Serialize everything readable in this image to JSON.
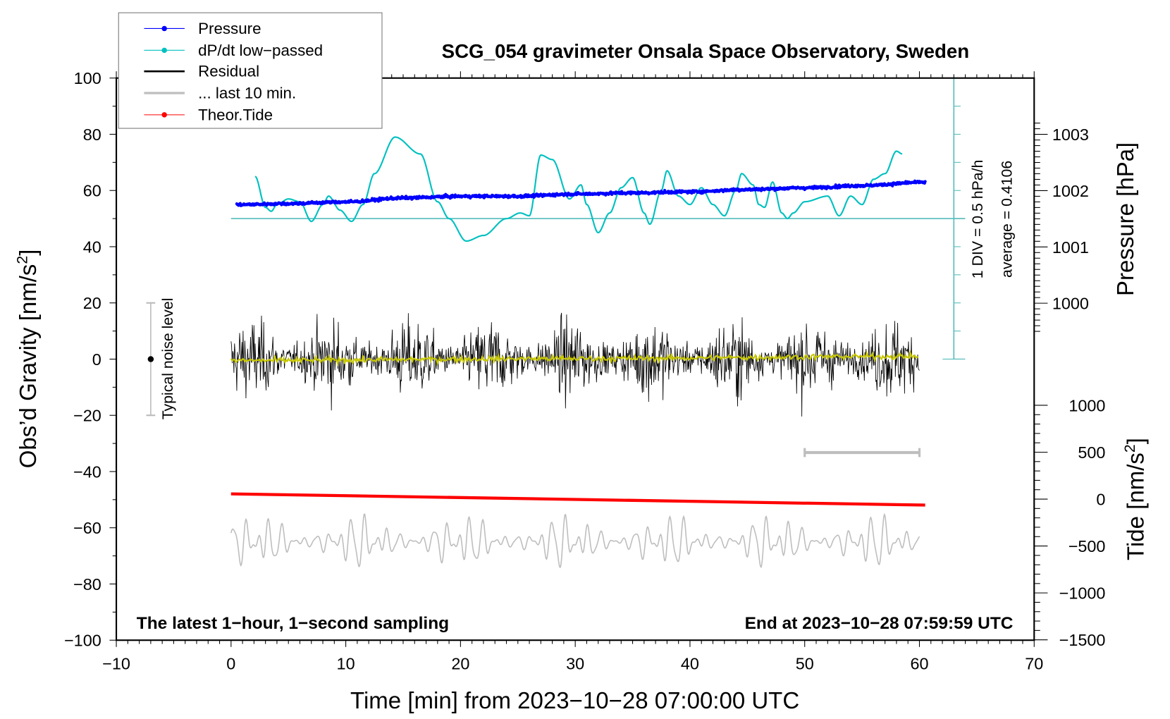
{
  "chart_data": {
    "type": "line",
    "title": "SCG_054 gravimeter Onsala Space Observatory, Sweden",
    "xlabel": "Time [min] from 2023−10−28 07:00:00 UTC",
    "ylabel": {
      "main": "Obs’d Gravity [nm/s",
      "sup": "2",
      "end": "]"
    },
    "y2label_pressure": "Pressure [hPa]",
    "y2label_tide": {
      "main": "Tide [nm/s",
      "sup": "2",
      "end": "]"
    },
    "xlim": [
      -10,
      70
    ],
    "ylim": [
      -100,
      100
    ],
    "pressure_lim": [
      999.5,
      1003.5
    ],
    "tide_lim": [
      -1500,
      1000
    ],
    "x_ticks": [
      "−10",
      "0",
      "10",
      "20",
      "30",
      "40",
      "50",
      "60",
      "70"
    ],
    "y_ticks": [
      "100",
      "80",
      "60",
      "40",
      "20",
      "0",
      "−20",
      "−40",
      "−60",
      "−80",
      "−100"
    ],
    "pressure_ticks": [
      "1003",
      "1002",
      "1001",
      "1000"
    ],
    "tide_ticks": [
      "1000",
      "500",
      "0",
      "−500",
      "−1000",
      "−1500"
    ],
    "annotations": {
      "left_bottom": "The latest 1−hour, 1−second sampling",
      "right_bottom": "End at 2023−10−28 07:59:59 UTC",
      "div_scale": "1 DIV = 0.5 hPa/h",
      "average": "average = 0.4106",
      "noise": "Typical noise level"
    },
    "legend": {
      "placement": "top-left",
      "entries": [
        "Pressure",
        "dP/dt low−passed",
        "Residual",
        "... last 10 min.",
        "Theor.Tide"
      ]
    },
    "colors": {
      "pressure": "#0000ff",
      "dpdt": "#00c0c0",
      "residual": "#000000",
      "smoothed": "#c8c800",
      "last10": "#bebebe",
      "tide": "#ff0000",
      "axisline": "#55bbbb"
    },
    "series": {
      "pressure_hPa": {
        "t": [
          0.5,
          5,
          10,
          15,
          20,
          25,
          30,
          35,
          40,
          45,
          50,
          55,
          60.5
        ],
        "values": [
          1001.75,
          1001.77,
          1001.8,
          1001.87,
          1001.9,
          1001.9,
          1001.94,
          1001.96,
          1001.98,
          1002.02,
          1002.05,
          1002.09,
          1002.15
        ]
      },
      "dpdt_hPa_per_h": {
        "t": [
          2.1,
          3,
          3.5,
          4,
          5,
          6,
          7,
          8,
          8.5,
          9.5,
          10.5,
          11.5,
          12.5,
          14.3,
          16.5,
          18,
          19,
          20.5,
          22,
          24,
          25.2,
          26,
          27,
          28,
          29.5,
          30.5,
          31,
          32,
          33,
          34,
          35,
          36,
          36.5,
          37.5,
          38,
          39,
          40,
          41,
          42,
          43,
          44,
          44.5,
          45.5,
          46,
          46.5,
          47.2,
          48,
          48.5,
          49,
          50,
          52,
          53,
          54,
          55,
          56,
          57,
          58,
          58.5
        ],
        "values": [
          0.75,
          0.2,
          0.13,
          0.25,
          0.35,
          0.3,
          -0.05,
          0.25,
          0.4,
          0.15,
          -0.05,
          0.25,
          0.8,
          1.45,
          1.15,
          0.3,
          0,
          -0.4,
          -0.3,
          0,
          0.1,
          0.05,
          1.13,
          1.05,
          0.35,
          0.6,
          0.25,
          -0.25,
          0.1,
          0.55,
          0.73,
          0.1,
          -0.1,
          0.5,
          0.85,
          0.4,
          0.25,
          0.55,
          0.25,
          0.05,
          0.5,
          0.8,
          0.6,
          0.25,
          0.2,
          0.65,
          0.1,
          0,
          0.1,
          0.3,
          0.4,
          0.05,
          0.4,
          0.25,
          0.7,
          0.8,
          1.2,
          1.15
        ]
      },
      "residual": {
        "t_range": [
          0,
          60
        ],
        "rms_nm_s2": 6,
        "max_abs_nm_s2": 21
      },
      "residual_smoothed": {
        "t": [
          0,
          30,
          60
        ],
        "values": [
          -0.5,
          0.2,
          1.0
        ]
      },
      "last_10_min": {
        "t_range": [
          0,
          60
        ],
        "offset_nm_s2": -65,
        "amplitude_nm_s2": 10,
        "window": [
          50,
          60
        ]
      },
      "theor_tide_nm_s2": {
        "t": [
          0,
          60.5
        ],
        "values": [
          56,
          -64
        ]
      },
      "noise_level": {
        "t": -7,
        "range": [
          -20,
          20
        ]
      },
      "dpdt_zero_level": 50
    }
  }
}
